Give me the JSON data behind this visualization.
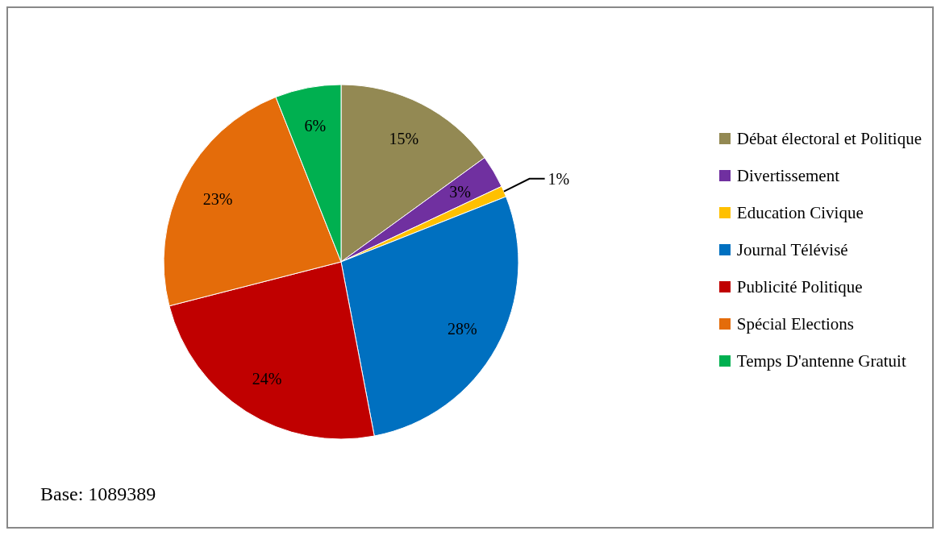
{
  "chart_data": {
    "type": "pie",
    "categories": [
      "Débat électoral et Politique",
      "Divertissement",
      "Education Civique",
      "Journal Télévisé",
      "Publicité Politique",
      "Spécial Elections",
      "Temps D'antenne Gratuit"
    ],
    "values": [
      15,
      3,
      1,
      28,
      24,
      23,
      6
    ],
    "colors": [
      "#938953",
      "#7030a0",
      "#ffc000",
      "#0070c0",
      "#c00000",
      "#e46c0a",
      "#00b050"
    ],
    "value_labels": [
      "15%",
      "3%",
      "1%",
      "28%",
      "24%",
      "23%",
      "6%"
    ],
    "legend": "right",
    "annotations": [
      "Base: 1089389"
    ]
  }
}
